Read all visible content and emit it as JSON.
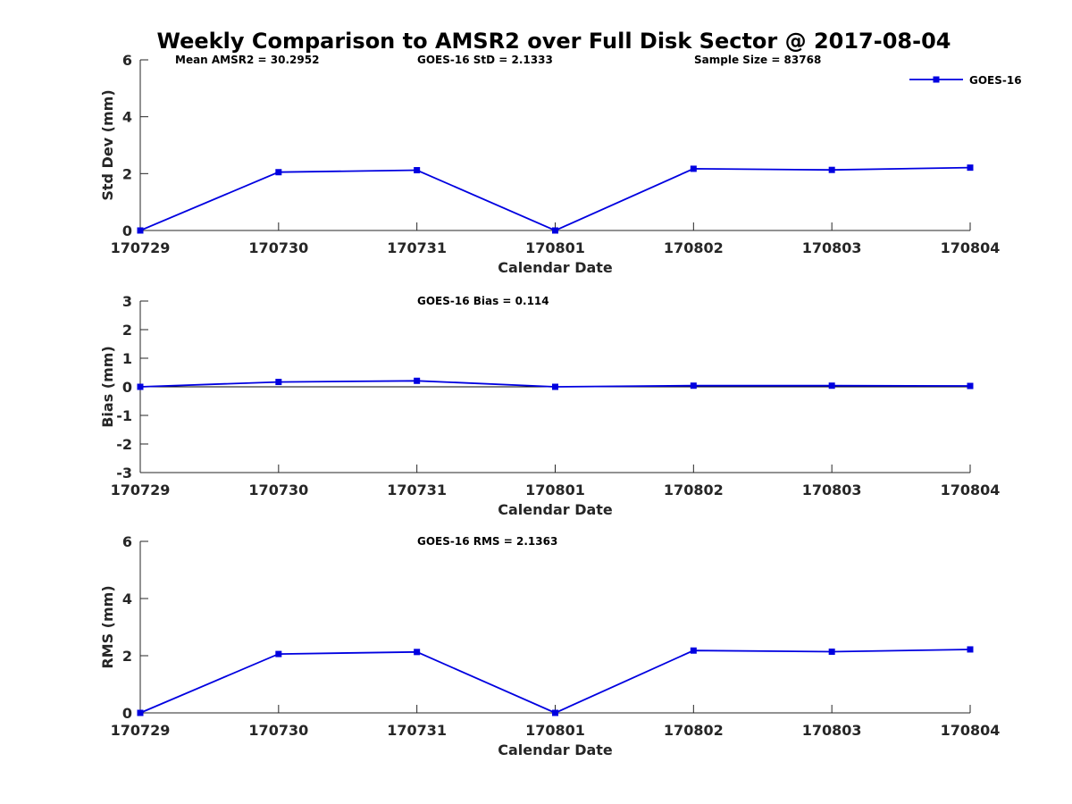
{
  "chart_data": {
    "title": "Weekly Comparison to AMSR2 over Full Disk Sector @ 2017-08-04",
    "type": "line",
    "color": "#0000e0",
    "legend": {
      "label": "GOES-16",
      "placement": "top-right"
    },
    "categories": [
      "170729",
      "170730",
      "170731",
      "170801",
      "170802",
      "170803",
      "170804"
    ],
    "panels": [
      {
        "id": "std",
        "ylabel": "Std Dev (mm)",
        "xlabel": "Calendar Date",
        "ylim": [
          0,
          6
        ],
        "yticks": [
          0,
          2,
          4,
          6
        ],
        "zero_line": false,
        "stats": [
          {
            "text": "Mean AMSR2 = 30.2952"
          },
          {
            "text": "GOES-16 StD = 2.1333"
          },
          {
            "text": "Sample Size = 83768"
          }
        ],
        "series": [
          {
            "name": "GOES-16",
            "values": [
              0.0,
              2.05,
              2.12,
              0.0,
              2.17,
              2.13,
              2.21
            ]
          }
        ]
      },
      {
        "id": "bias",
        "ylabel": "Bias (mm)",
        "xlabel": "Calendar Date",
        "ylim": [
          -3,
          3
        ],
        "yticks": [
          -3,
          -2,
          -1,
          0,
          1,
          2,
          3
        ],
        "zero_line": true,
        "stats": [
          {
            "text": "GOES-16 Bias  = 0.114"
          }
        ],
        "series": [
          {
            "name": "GOES-16",
            "values": [
              0.0,
              0.17,
              0.21,
              0.0,
              0.04,
              0.04,
              0.03
            ]
          }
        ]
      },
      {
        "id": "rms",
        "ylabel": "RMS (mm)",
        "xlabel": "Calendar Date",
        "ylim": [
          0,
          6
        ],
        "yticks": [
          0,
          2,
          4,
          6
        ],
        "zero_line": false,
        "stats": [
          {
            "text": "GOES-16 RMS = 2.1363"
          }
        ],
        "series": [
          {
            "name": "GOES-16",
            "values": [
              0.0,
              2.06,
              2.13,
              0.0,
              2.18,
              2.14,
              2.22
            ]
          }
        ]
      }
    ]
  }
}
